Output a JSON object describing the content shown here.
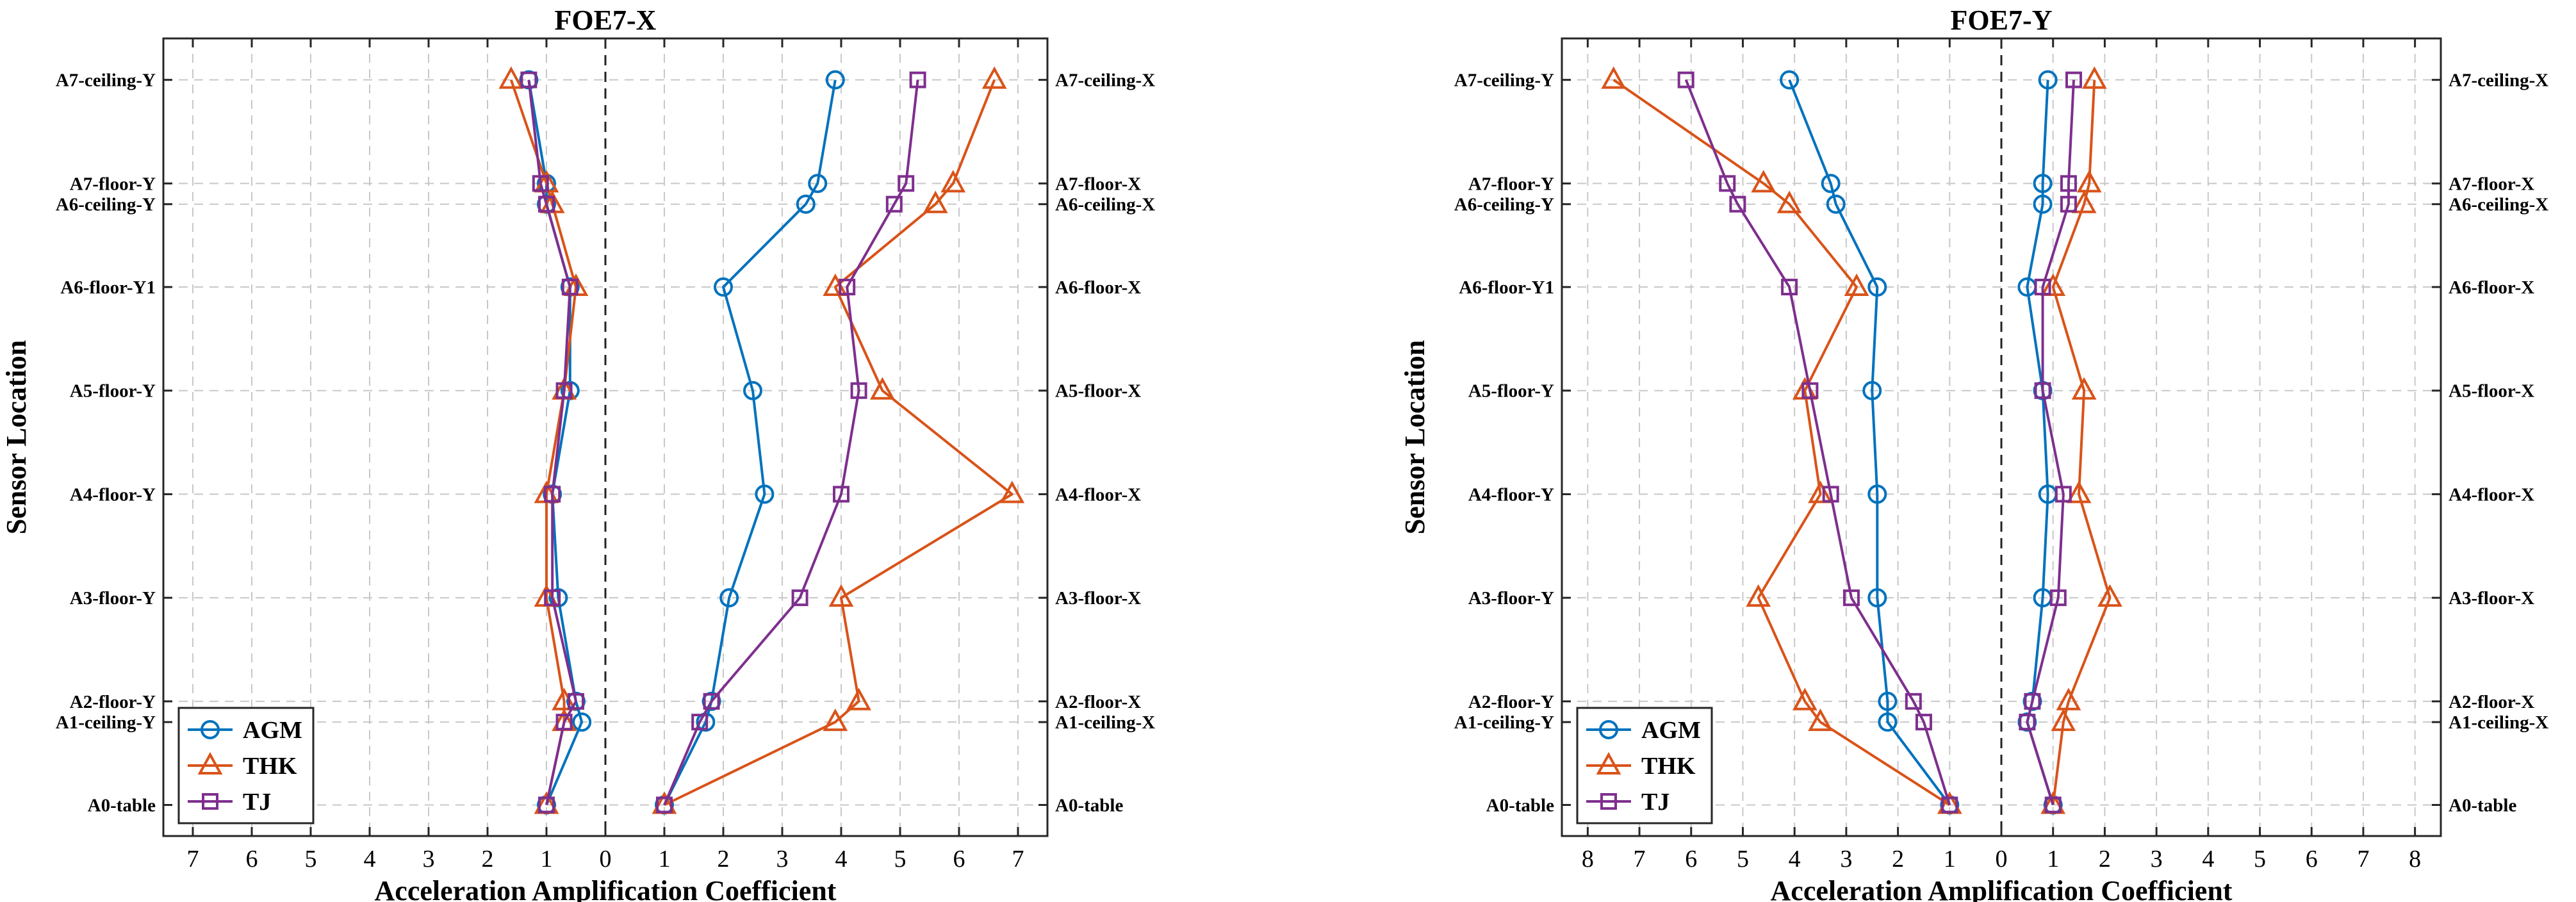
{
  "chart_data": [
    {
      "type": "line",
      "title": "FOE7-X",
      "xlabel": "Acceleration Amplification Coefficient",
      "ylabel": "Sensor Location",
      "x_ticks": [
        "7",
        "6",
        "5",
        "4",
        "3",
        "2",
        "1",
        "0",
        "1",
        "2",
        "3",
        "4",
        "5",
        "6",
        "7"
      ],
      "left_labels": [
        "A7-ceiling-Y",
        "A7-floor-Y",
        "A6-ceiling-Y",
        "A6-floor-Y1",
        "A5-floor-Y",
        "A4-floor-Y",
        "A3-floor-Y",
        "A2-floor-Y",
        "A1-ceiling-Y",
        "A0-table"
      ],
      "right_labels": [
        "A7-ceiling-X",
        "A7-floor-X",
        "A6-ceiling-X",
        "A6-floor-X",
        "A5-floor-X",
        "A4-floor-X",
        "A3-floor-X",
        "A2-floor-X",
        "A1-ceiling-X",
        "A0-table"
      ],
      "levels": [
        7.0,
        6.0,
        5.8,
        5.0,
        4.0,
        3.0,
        2.0,
        1.0,
        0.8,
        0.0
      ],
      "xlim": [
        -7.5,
        7.5
      ],
      "ylim": [
        -0.3,
        7.4
      ],
      "grid": true,
      "legend_position": "bottom-left",
      "series": [
        {
          "name": "AGM",
          "color": "#0072BD",
          "marker": "circle",
          "left": [
            1.3,
            1.0,
            1.0,
            0.6,
            0.6,
            0.9,
            0.8,
            0.5,
            0.4,
            1.0
          ],
          "right": [
            3.9,
            3.6,
            3.4,
            2.0,
            2.5,
            2.7,
            2.1,
            1.8,
            1.7,
            1.0
          ]
        },
        {
          "name": "THK",
          "color": "#D95319",
          "marker": "triangle",
          "left": [
            1.6,
            1.0,
            0.9,
            0.5,
            0.7,
            1.0,
            1.0,
            0.7,
            0.7,
            1.0
          ],
          "right": [
            6.6,
            5.9,
            5.6,
            3.9,
            4.7,
            6.9,
            4.0,
            4.3,
            3.9,
            1.0
          ]
        },
        {
          "name": "TJ",
          "color": "#7E2F8E",
          "marker": "square",
          "left": [
            1.3,
            1.1,
            1.0,
            0.6,
            0.7,
            0.9,
            0.9,
            0.5,
            0.7,
            1.0
          ],
          "right": [
            5.3,
            5.1,
            4.9,
            4.1,
            4.3,
            4.0,
            3.3,
            1.8,
            1.6,
            1.0
          ]
        }
      ]
    },
    {
      "type": "line",
      "title": "FOE7-Y",
      "xlabel": "Acceleration Amplification Coefficient",
      "ylabel": "Sensor Location",
      "x_ticks": [
        "8",
        "7",
        "6",
        "5",
        "4",
        "3",
        "2",
        "1",
        "0",
        "1",
        "2",
        "3",
        "4",
        "5",
        "6",
        "7",
        "8"
      ],
      "left_labels": [
        "A7-ceiling-Y",
        "A7-floor-Y",
        "A6-ceiling-Y",
        "A6-floor-Y1",
        "A5-floor-Y",
        "A4-floor-Y",
        "A3-floor-Y",
        "A2-floor-Y",
        "A1-ceiling-Y",
        "A0-table"
      ],
      "right_labels": [
        "A7-ceiling-X",
        "A7-floor-X",
        "A6-ceiling-X",
        "A6-floor-X",
        "A5-floor-X",
        "A4-floor-X",
        "A3-floor-X",
        "A2-floor-X",
        "A1-ceiling-X",
        "A0-table"
      ],
      "levels": [
        7.0,
        6.0,
        5.8,
        5.0,
        4.0,
        3.0,
        2.0,
        1.0,
        0.8,
        0.0
      ],
      "xlim": [
        -8.5,
        8.5
      ],
      "ylim": [
        -0.3,
        7.4
      ],
      "grid": true,
      "legend_position": "bottom-left",
      "series": [
        {
          "name": "AGM",
          "color": "#0072BD",
          "marker": "circle",
          "left": [
            4.1,
            3.3,
            3.2,
            2.4,
            2.5,
            2.4,
            2.4,
            2.2,
            2.2,
            1.0
          ],
          "right": [
            0.9,
            0.8,
            0.8,
            0.5,
            0.8,
            0.9,
            0.8,
            0.6,
            0.5,
            1.0
          ]
        },
        {
          "name": "THK",
          "color": "#D95319",
          "marker": "triangle",
          "left": [
            7.5,
            4.6,
            4.1,
            2.8,
            3.8,
            3.5,
            4.7,
            3.8,
            3.5,
            1.0
          ],
          "right": [
            1.8,
            1.7,
            1.6,
            1.0,
            1.6,
            1.5,
            2.1,
            1.3,
            1.2,
            1.0
          ]
        },
        {
          "name": "TJ",
          "color": "#7E2F8E",
          "marker": "square",
          "left": [
            6.1,
            5.3,
            5.1,
            4.1,
            3.7,
            3.3,
            2.9,
            1.7,
            1.5,
            1.0
          ],
          "right": [
            1.4,
            1.3,
            1.3,
            0.8,
            0.8,
            1.2,
            1.1,
            0.6,
            0.5,
            1.0
          ]
        }
      ]
    }
  ]
}
